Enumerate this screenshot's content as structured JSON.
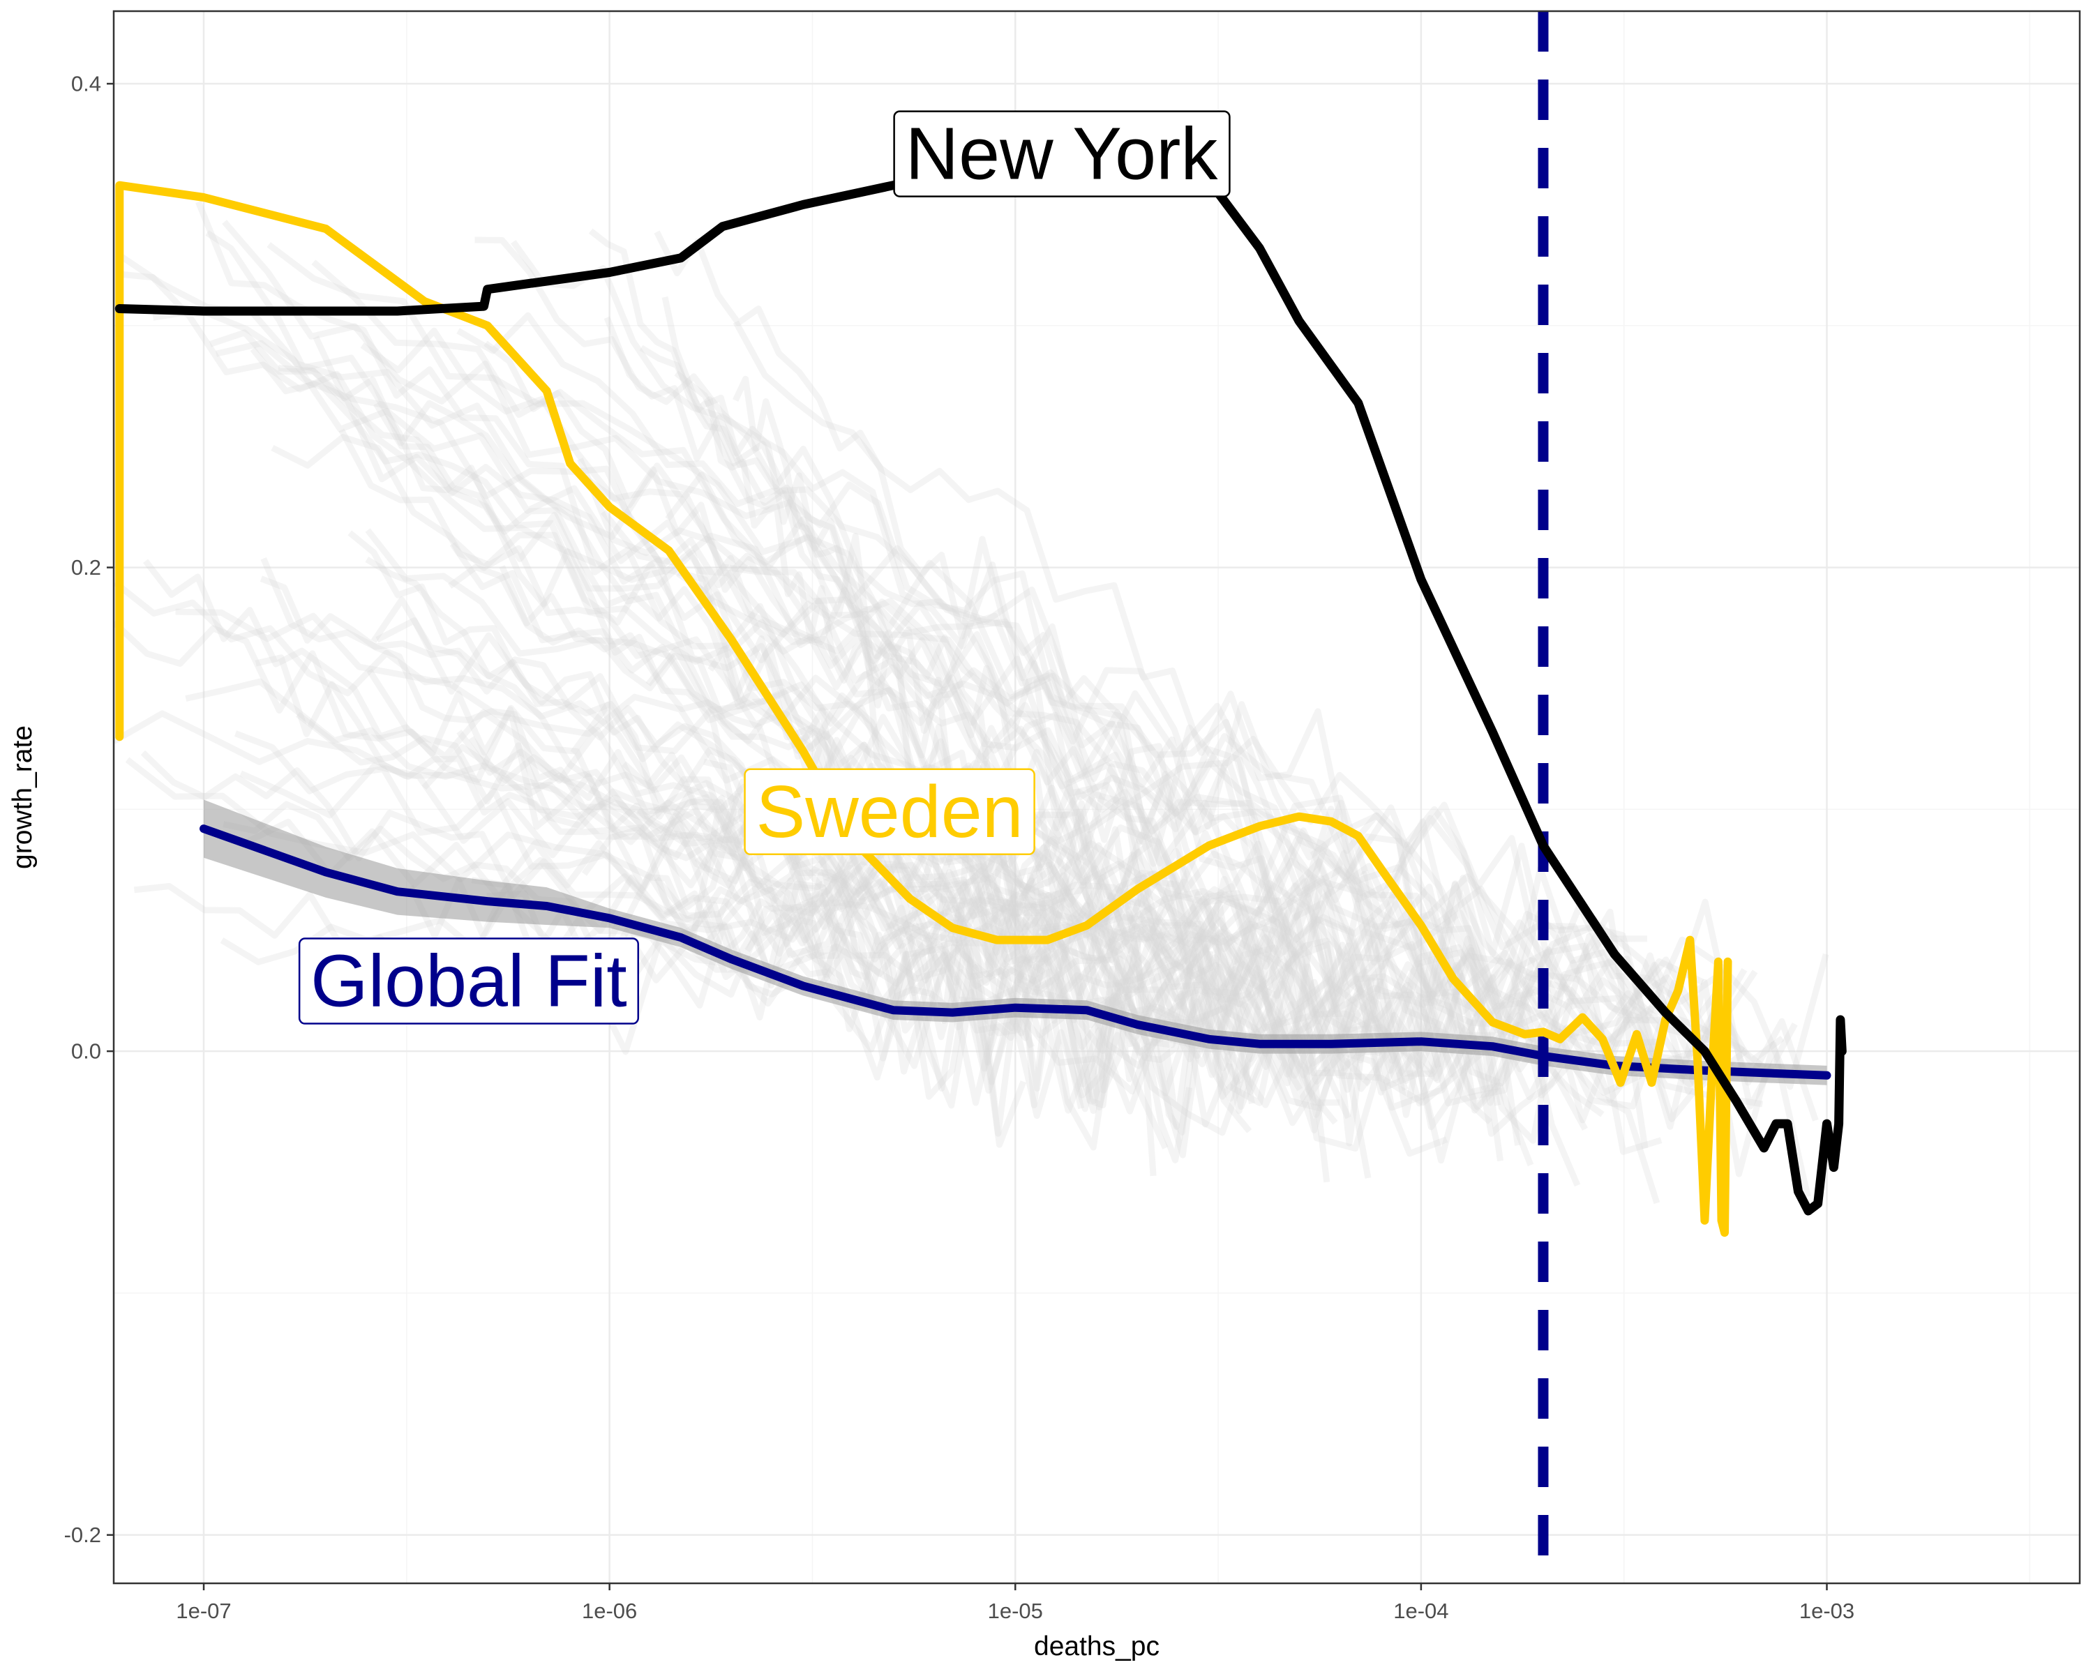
{
  "chart_data": {
    "type": "line",
    "title": "",
    "xlabel": "deaths_pc",
    "ylabel": "growth_rate",
    "x_scale": "log10",
    "xlim": [
      6e-08,
      0.0042
    ],
    "ylim": [
      -0.22,
      0.43
    ],
    "x_ticks": [
      1e-07,
      1e-06,
      1e-05,
      0.0001,
      0.001
    ],
    "x_tick_labels": [
      "1e-07",
      "1e-06",
      "1e-05",
      "1e-04",
      "1e-03"
    ],
    "y_ticks": [
      -0.2,
      0.0,
      0.2,
      0.4
    ],
    "y_tick_labels": [
      "-0.2",
      "0.0",
      "0.2",
      "0.4"
    ],
    "grid": true,
    "legend": "none",
    "colors": {
      "new_york": "#000000",
      "sweden": "#FFCC00",
      "global_fit": "#00008B",
      "ribbon": "#999999",
      "background_series": "#d9d9d9",
      "panel_border": "#333333",
      "grid_major": "#ebebeb",
      "grid_minor": "#f5f5f5"
    },
    "reference_line": {
      "type": "vertical",
      "x": 0.0002,
      "style": "dashed",
      "color": "#00008B"
    },
    "annotations": [
      {
        "series": "new_york",
        "text": "New York",
        "x": 1.3e-05,
        "y": 0.371,
        "color": "#000000"
      },
      {
        "series": "sweden",
        "text": "Sweden",
        "x": 4.9e-06,
        "y": 0.099,
        "color": "#FFCC00"
      },
      {
        "series": "global_fit",
        "text": "Global Fit",
        "x": 4.5e-07,
        "y": 0.029,
        "color": "#00008B"
      }
    ],
    "series": [
      {
        "key": "new_york",
        "x": [
          6.2e-08,
          1e-07,
          2e-07,
          3e-07,
          4.9e-07,
          5e-07,
          1e-06,
          1.5e-06,
          1.9e-06,
          3e-06,
          5e-06,
          1e-05,
          2e-05,
          3e-05,
          4e-05,
          5e-05,
          7e-05,
          0.0001,
          0.00015,
          0.0002,
          0.0003,
          0.0004,
          0.0005,
          0.0006,
          0.0007,
          0.00075,
          0.0008,
          0.00085,
          0.0009,
          0.00095,
          0.001,
          0.00104,
          0.00107,
          0.00108,
          0.00109
        ],
        "y": [
          0.307,
          0.306,
          0.306,
          0.306,
          0.308,
          0.315,
          0.322,
          0.328,
          0.341,
          0.35,
          0.358,
          0.368,
          0.369,
          0.36,
          0.332,
          0.302,
          0.268,
          0.195,
          0.132,
          0.085,
          0.04,
          0.016,
          0.0,
          -0.021,
          -0.04,
          -0.03,
          -0.03,
          -0.058,
          -0.066,
          -0.063,
          -0.03,
          -0.048,
          -0.03,
          0.013,
          0.0
        ]
      },
      {
        "key": "sweden",
        "x": [
          6.2e-08,
          6.2e-08,
          1e-07,
          2e-07,
          3.5e-07,
          5e-07,
          7e-07,
          8e-07,
          1e-06,
          1.4e-06,
          2e-06,
          3e-06,
          4e-06,
          5.5e-06,
          7e-06,
          9e-06,
          1.2e-05,
          1.5e-05,
          2e-05,
          3e-05,
          4e-05,
          5e-05,
          6e-05,
          7e-05,
          8e-05,
          0.0001,
          0.00012,
          0.00015,
          0.00018,
          0.0002,
          0.00022,
          0.00025,
          0.00028,
          0.00031,
          0.00034,
          0.00037,
          0.0004,
          0.00043,
          0.00046,
          0.00048,
          0.0005,
          0.00052,
          0.00054,
          0.00055,
          0.00056,
          0.00057
        ],
        "y": [
          0.13,
          0.358,
          0.353,
          0.34,
          0.31,
          0.3,
          0.273,
          0.243,
          0.225,
          0.207,
          0.17,
          0.124,
          0.087,
          0.063,
          0.051,
          0.046,
          0.046,
          0.052,
          0.067,
          0.085,
          0.093,
          0.097,
          0.095,
          0.089,
          0.075,
          0.052,
          0.03,
          0.012,
          0.007,
          0.008,
          0.005,
          0.014,
          0.005,
          -0.013,
          0.007,
          -0.013,
          0.013,
          0.025,
          0.046,
          -0.003,
          -0.07,
          -0.012,
          0.037,
          -0.07,
          -0.075,
          0.037
        ]
      },
      {
        "key": "global_fit",
        "x": [
          1e-07,
          2e-07,
          3e-07,
          5e-07,
          7e-07,
          1e-06,
          1.5e-06,
          2e-06,
          3e-06,
          5e-06,
          7e-06,
          1e-05,
          1.5e-05,
          2e-05,
          3e-05,
          4e-05,
          6e-05,
          0.0001,
          0.00015,
          0.0002,
          0.0003,
          0.0005,
          0.0007,
          0.001
        ],
        "y": [
          0.092,
          0.074,
          0.066,
          0.062,
          0.06,
          0.055,
          0.047,
          0.038,
          0.027,
          0.017,
          0.016,
          0.018,
          0.017,
          0.011,
          0.005,
          0.003,
          0.003,
          0.004,
          0.002,
          -0.002,
          -0.006,
          -0.008,
          -0.009,
          -0.01
        ]
      }
    ]
  }
}
